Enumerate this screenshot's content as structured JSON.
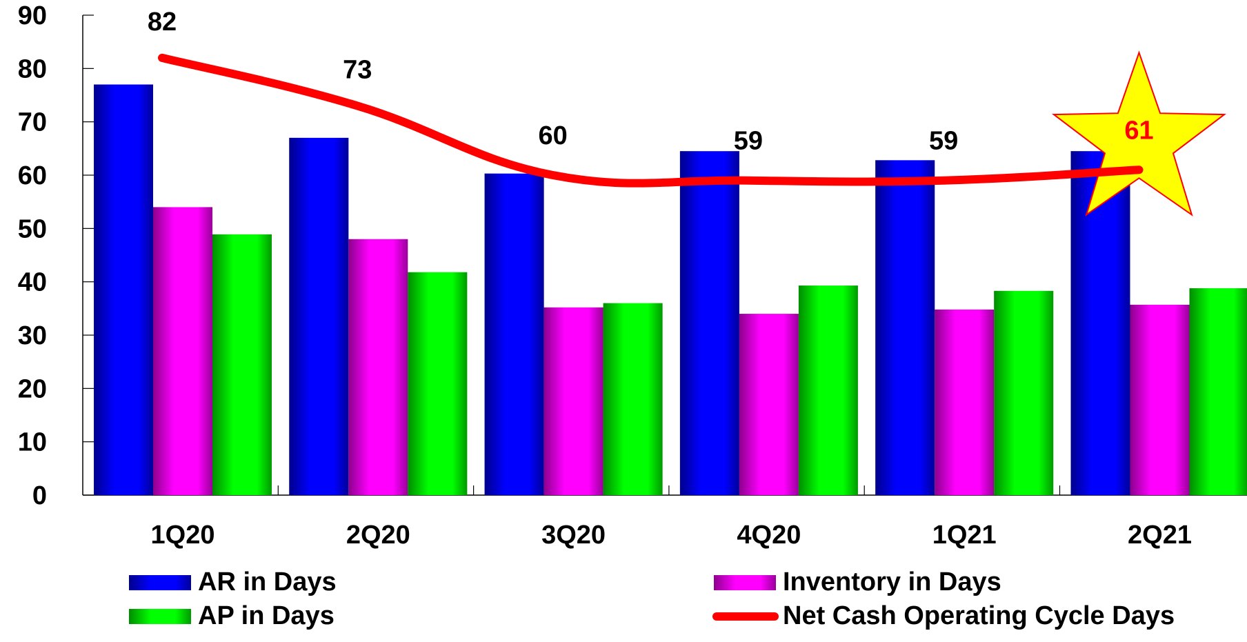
{
  "chart_data": {
    "type": "bar",
    "title": "",
    "xlabel": "",
    "ylabel": "",
    "ylim": [
      0,
      90
    ],
    "yticks": [
      0,
      10,
      20,
      30,
      40,
      50,
      60,
      70,
      80,
      90
    ],
    "categories": [
      "1Q20",
      "2Q20",
      "3Q20",
      "4Q20",
      "1Q21",
      "2Q21"
    ],
    "series": [
      {
        "name": "AR in Days",
        "kind": "bar",
        "color": "#0000ff",
        "values": [
          77,
          67,
          60.3,
          64.5,
          62.8,
          64.5
        ]
      },
      {
        "name": "Inventory in Days",
        "kind": "bar",
        "color": "#ff00ff",
        "values": [
          54,
          48,
          35.2,
          34,
          34.8,
          35.7
        ]
      },
      {
        "name": "AP in Days",
        "kind": "bar",
        "color": "#00ff00",
        "values": [
          48.9,
          41.8,
          36,
          39.3,
          38.3,
          38.8
        ]
      },
      {
        "name": "Net Cash Operating Cycle Days",
        "kind": "line",
        "color": "#ff0000",
        "values": [
          82,
          73,
          60,
          59,
          59,
          61
        ],
        "labels": [
          "82",
          "73",
          "60",
          "59",
          "59",
          "61"
        ]
      }
    ],
    "highlight": {
      "category": "2Q21",
      "shape": "star-icon",
      "fill": "#ffff00",
      "stroke": "#ff0000",
      "label_color": "#ff0000"
    },
    "legend": {
      "placement": "bottom"
    },
    "grid": false
  }
}
